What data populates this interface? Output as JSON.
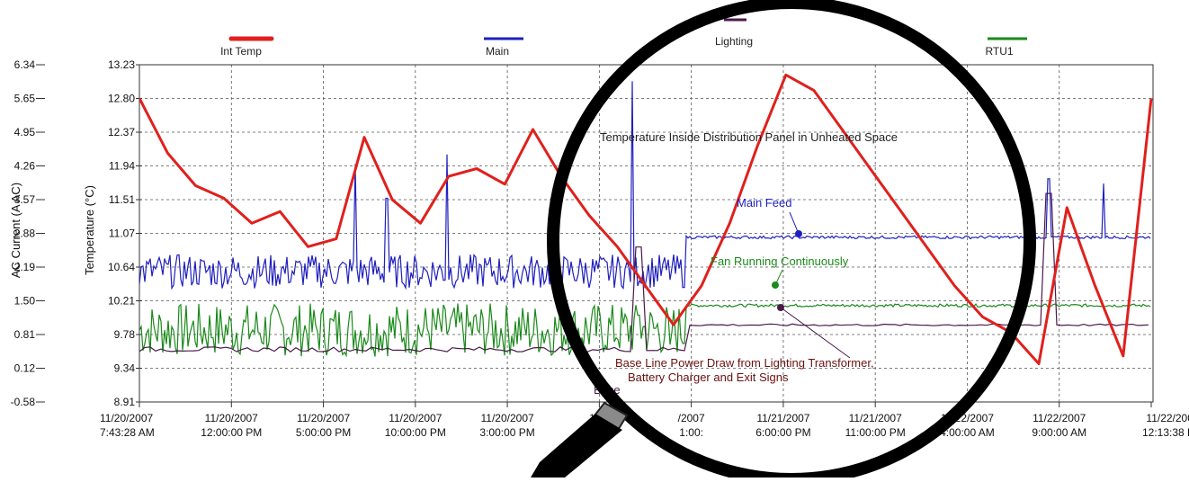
{
  "chart_data": {
    "type": "line",
    "legend": [
      {
        "name": "Int Temp",
        "color": "#e0201c"
      },
      {
        "name": "Main",
        "color": "#1f1fbf"
      },
      {
        "name": "Lighting",
        "color": "#4a1a4a"
      },
      {
        "name": "RTU1",
        "color": "#1a8a1a"
      }
    ],
    "ylabel_left": "AC Current (A AC)",
    "ylabel_right": "Temperature (°C)",
    "current_ticks": [
      "6.34",
      "5.65",
      "4.95",
      "4.26",
      "3.57",
      "2.88",
      "2.19",
      "1.50",
      "0.81",
      "0.12",
      "-0.58"
    ],
    "temp_ticks": [
      "13.23",
      "12.80",
      "12.37",
      "11.94",
      "11.51",
      "11.07",
      "10.64",
      "10.21",
      "9.78",
      "9.34",
      "8.91"
    ],
    "current_range": [
      -0.58,
      6.34
    ],
    "temp_range": [
      8.91,
      13.23
    ],
    "x_ticks": [
      {
        "d": "11/20/2007",
        "t": "7:43:28 AM"
      },
      {
        "d": "11/20/2007",
        "t": "12:00:00 PM"
      },
      {
        "d": "11/20/2007",
        "t": "5:00:00 PM"
      },
      {
        "d": "11/20/2007",
        "t": "10:00:00 PM"
      },
      {
        "d": "11/20/2007",
        "t": "3:00:00 PM"
      },
      {
        "d": "11/2",
        "t": "8:"
      },
      {
        "d": "/2007",
        "t": "1:00:"
      },
      {
        "d": "11/21/2007",
        "t": "6:00:00 PM"
      },
      {
        "d": "11/21/2007",
        "t": "11:00:00 PM"
      },
      {
        "d": "11/22/2007",
        "t": "4:00:00 AM"
      },
      {
        "d": "11/22/2007",
        "t": "9:00:00 AM"
      },
      {
        "d": "11/22/2007",
        "t": "12:13:38 PM"
      }
    ],
    "grid": true,
    "series": [
      {
        "name": "Int Temp",
        "axis": "temperature",
        "approx_values": [
          12.8,
          12.1,
          11.68,
          11.52,
          11.2,
          11.35,
          10.9,
          11.0,
          12.3,
          11.5,
          11.2,
          11.8,
          11.9,
          11.7,
          12.4,
          11.8,
          11.3,
          10.9,
          10.4,
          9.9,
          10.4,
          11.2,
          12.2,
          13.1,
          12.9,
          12.4,
          11.9,
          11.4,
          10.9,
          10.4,
          10.0,
          9.8,
          9.4,
          11.4,
          10.4,
          9.5,
          12.8
        ]
      },
      {
        "name": "Main",
        "axis": "current",
        "baseline_current": 2.1,
        "after_change_current": 2.8
      },
      {
        "name": "RTU1",
        "axis": "current",
        "baseline_current": 0.9,
        "after_change_current": 1.4
      },
      {
        "name": "Lighting",
        "axis": "current",
        "baseline_current": 0.5,
        "after_change_current": 1.0
      }
    ],
    "annotations": {
      "panel_temp": "Temperature Inside Distribution Panel in Unheated Space",
      "main_feed": "Main Feed",
      "fan": "Fan Running Continuously",
      "base_line_1": "Base Line Power Draw from Lighting Transformer,",
      "base_line_2": "Battery Charger and Exit Signs",
      "small_base": "Base"
    }
  }
}
